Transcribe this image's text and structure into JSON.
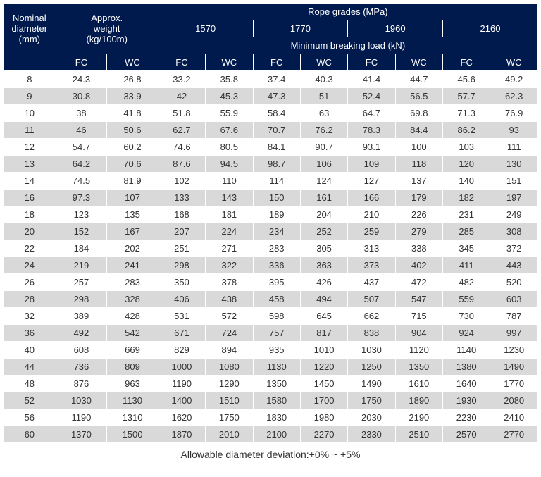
{
  "header": {
    "nominal_line1": "Nominal",
    "nominal_line2": "diameter",
    "nominal_line3": "(mm)",
    "weight_line1": "Approx.",
    "weight_line2": "weight",
    "weight_line3": "(kg/100m)",
    "grades_title": "Rope grades (MPa)",
    "mbl_title": "Minimum breaking load (kN)",
    "grades": [
      "1570",
      "1770",
      "1960",
      "2160"
    ],
    "fc": "FC",
    "wc": "WC"
  },
  "colors": {
    "header_bg": "#001a4d",
    "header_fg": "#ffffff",
    "row_even_bg": "#ffffff",
    "row_odd_bg": "#d9d9d9",
    "cell_fg": "#333333",
    "border": "#ffffff"
  },
  "columns": [
    "diameter",
    "weight_fc",
    "weight_wc",
    "g1570_fc",
    "g1570_wc",
    "g1770_fc",
    "g1770_wc",
    "g1960_fc",
    "g1960_wc",
    "g2160_fc",
    "g2160_wc"
  ],
  "rows": [
    [
      "8",
      "24.3",
      "26.8",
      "33.2",
      "35.8",
      "37.4",
      "40.3",
      "41.4",
      "44.7",
      "45.6",
      "49.2"
    ],
    [
      "9",
      "30.8",
      "33.9",
      "42",
      "45.3",
      "47.3",
      "51",
      "52.4",
      "56.5",
      "57.7",
      "62.3"
    ],
    [
      "10",
      "38",
      "41.8",
      "51.8",
      "55.9",
      "58.4",
      "63",
      "64.7",
      "69.8",
      "71.3",
      "76.9"
    ],
    [
      "11",
      "46",
      "50.6",
      "62.7",
      "67.6",
      "70.7",
      "76.2",
      "78.3",
      "84.4",
      "86.2",
      "93"
    ],
    [
      "12",
      "54.7",
      "60.2",
      "74.6",
      "80.5",
      "84.1",
      "90.7",
      "93.1",
      "100",
      "103",
      "111"
    ],
    [
      "13",
      "64.2",
      "70.6",
      "87.6",
      "94.5",
      "98.7",
      "106",
      "109",
      "118",
      "120",
      "130"
    ],
    [
      "14",
      "74.5",
      "81.9",
      "102",
      "110",
      "114",
      "124",
      "127",
      "137",
      "140",
      "151"
    ],
    [
      "16",
      "97.3",
      "107",
      "133",
      "143",
      "150",
      "161",
      "166",
      "179",
      "182",
      "197"
    ],
    [
      "18",
      "123",
      "135",
      "168",
      "181",
      "189",
      "204",
      "210",
      "226",
      "231",
      "249"
    ],
    [
      "20",
      "152",
      "167",
      "207",
      "224",
      "234",
      "252",
      "259",
      "279",
      "285",
      "308"
    ],
    [
      "22",
      "184",
      "202",
      "251",
      "271",
      "283",
      "305",
      "313",
      "338",
      "345",
      "372"
    ],
    [
      "24",
      "219",
      "241",
      "298",
      "322",
      "336",
      "363",
      "373",
      "402",
      "411",
      "443"
    ],
    [
      "26",
      "257",
      "283",
      "350",
      "378",
      "395",
      "426",
      "437",
      "472",
      "482",
      "520"
    ],
    [
      "28",
      "298",
      "328",
      "406",
      "438",
      "458",
      "494",
      "507",
      "547",
      "559",
      "603"
    ],
    [
      "32",
      "389",
      "428",
      "531",
      "572",
      "598",
      "645",
      "662",
      "715",
      "730",
      "787"
    ],
    [
      "36",
      "492",
      "542",
      "671",
      "724",
      "757",
      "817",
      "838",
      "904",
      "924",
      "997"
    ],
    [
      "40",
      "608",
      "669",
      "829",
      "894",
      "935",
      "1010",
      "1030",
      "1120",
      "1140",
      "1230"
    ],
    [
      "44",
      "736",
      "809",
      "1000",
      "1080",
      "1130",
      "1220",
      "1250",
      "1350",
      "1380",
      "1490"
    ],
    [
      "48",
      "876",
      "963",
      "1190",
      "1290",
      "1350",
      "1450",
      "1490",
      "1610",
      "1640",
      "1770"
    ],
    [
      "52",
      "1030",
      "1130",
      "1400",
      "1510",
      "1580",
      "1700",
      "1750",
      "1890",
      "1930",
      "2080"
    ],
    [
      "56",
      "1190",
      "1310",
      "1620",
      "1750",
      "1830",
      "1980",
      "2030",
      "2190",
      "2230",
      "2410"
    ],
    [
      "60",
      "1370",
      "1500",
      "1870",
      "2010",
      "2100",
      "2270",
      "2330",
      "2510",
      "2570",
      "2770"
    ]
  ],
  "footer": "Allowable diameter deviation:+0% ~ +5%"
}
